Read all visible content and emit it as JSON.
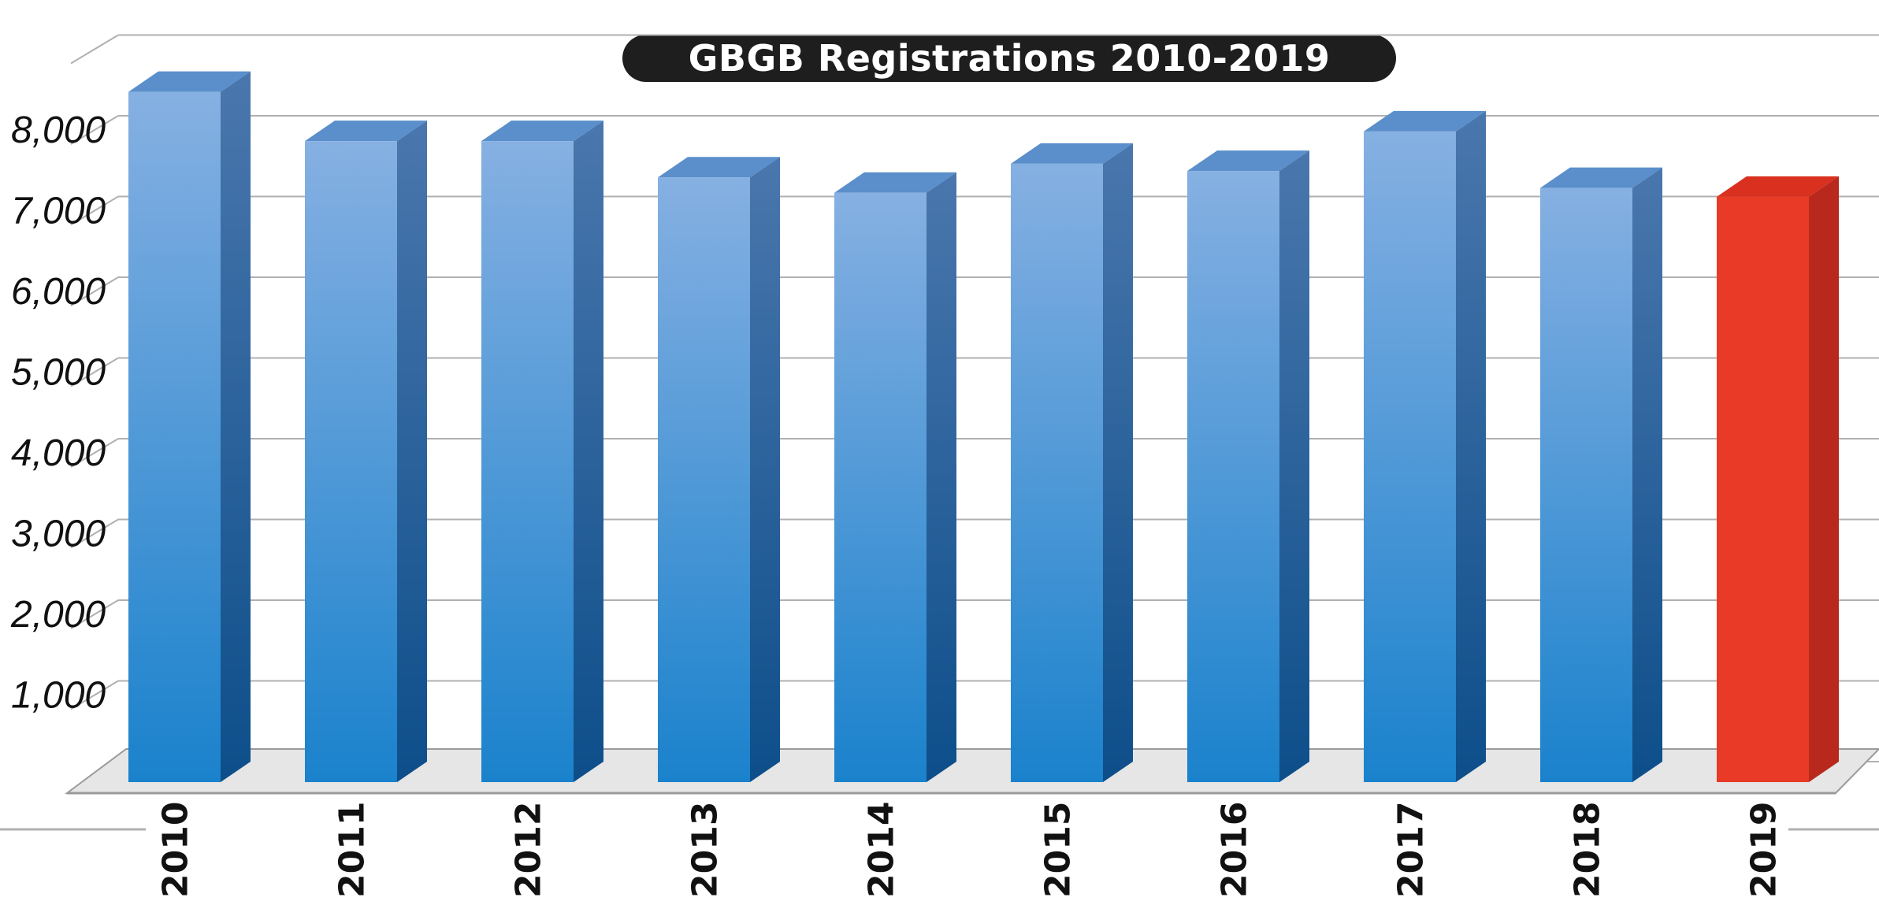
{
  "chart_data": {
    "type": "bar",
    "title": "GBGB Registrations 2010-2019",
    "categories": [
      "2010",
      "2011",
      "2012",
      "2013",
      "2014",
      "2015",
      "2016",
      "2017",
      "2018",
      "2019"
    ],
    "values": [
      8550,
      7940,
      7940,
      7490,
      7300,
      7660,
      7570,
      8060,
      7360,
      7250
    ],
    "yticks": [
      1000,
      2000,
      3000,
      4000,
      5000,
      6000,
      7000,
      8000
    ],
    "ytick_labels": [
      "1,000",
      "2,000",
      "3,000",
      "4,000",
      "5,000",
      "6,000",
      "7,000",
      "8,000"
    ],
    "ylim": [
      0,
      9000
    ],
    "grid": true,
    "colors": {
      "bar": "#2a86cf",
      "highlight": "#e83a26"
    },
    "highlight_category": "2019"
  }
}
